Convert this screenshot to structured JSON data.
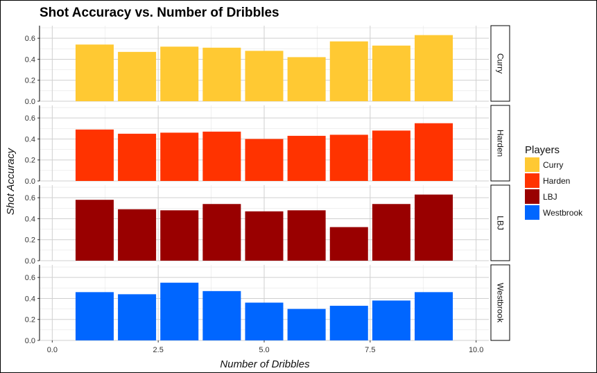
{
  "chart_data": {
    "type": "bar",
    "title": "Shot Accuracy vs. Number of Dribbles",
    "xlabel": "Number of Dribbles",
    "ylabel": "Shot Accuracy",
    "xlim": [
      -0.3,
      10.3
    ],
    "ylim": [
      0,
      0.72
    ],
    "x_ticks": [
      0.0,
      2.5,
      5.0,
      7.5,
      10.0
    ],
    "x_tick_labels": [
      "0.0",
      "2.5",
      "5.0",
      "7.5",
      "10.0"
    ],
    "y_ticks": [
      0.0,
      0.2,
      0.4,
      0.6
    ],
    "y_tick_labels": [
      "0.0",
      "0.2",
      "0.4",
      "0.6"
    ],
    "x": [
      1,
      2,
      3,
      4,
      5,
      6,
      7,
      8,
      9
    ],
    "grid": true,
    "facet_layout": "rows",
    "legend": {
      "title": "Players",
      "position": "right",
      "entries": [
        "Curry",
        "Harden",
        "LBJ",
        "Westbrook"
      ]
    },
    "series": [
      {
        "name": "Curry",
        "color": "#FFC933",
        "values": [
          0.54,
          0.47,
          0.52,
          0.51,
          0.48,
          0.42,
          0.57,
          0.53,
          0.63
        ]
      },
      {
        "name": "Harden",
        "color": "#FF3300",
        "values": [
          0.49,
          0.45,
          0.46,
          0.47,
          0.4,
          0.43,
          0.44,
          0.48,
          0.55
        ]
      },
      {
        "name": "LBJ",
        "color": "#990000",
        "values": [
          0.58,
          0.49,
          0.48,
          0.54,
          0.47,
          0.48,
          0.32,
          0.54,
          0.63
        ]
      },
      {
        "name": "Westbrook",
        "color": "#0066FF",
        "values": [
          0.46,
          0.44,
          0.55,
          0.47,
          0.36,
          0.3,
          0.33,
          0.38,
          0.46
        ]
      }
    ]
  }
}
